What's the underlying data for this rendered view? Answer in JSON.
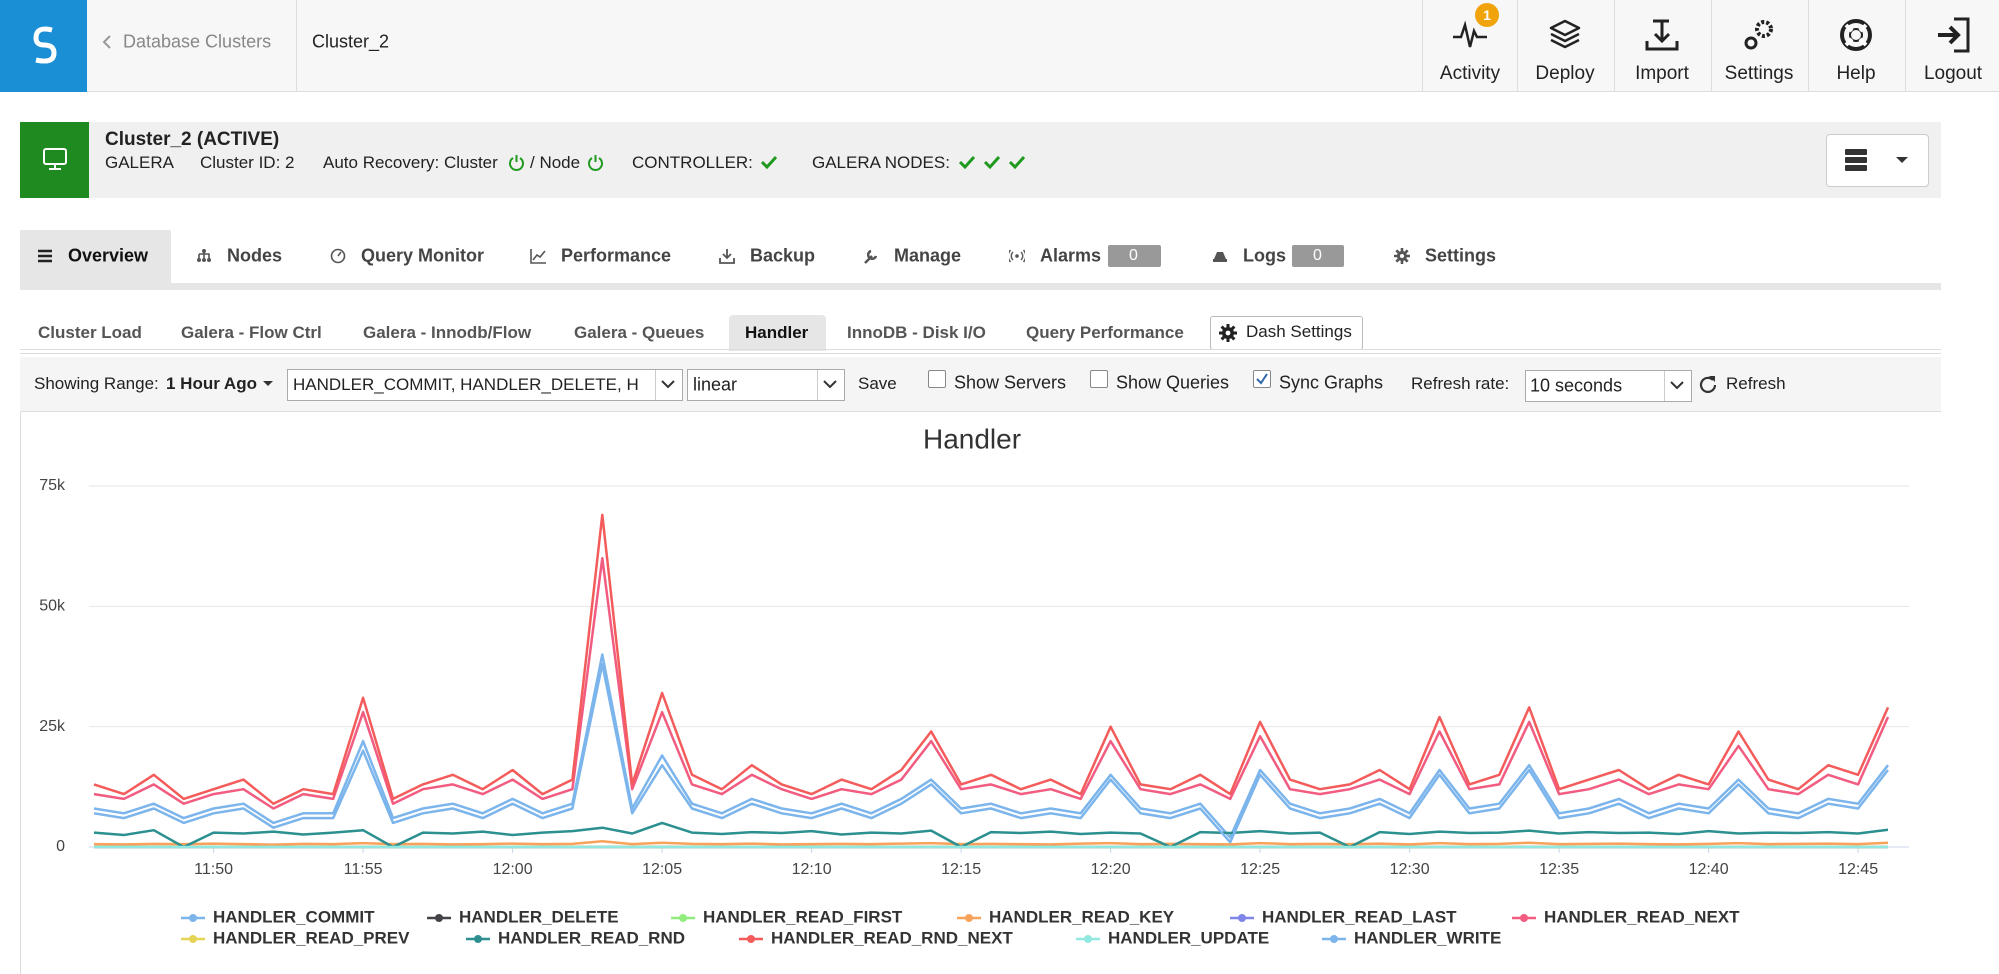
{
  "header": {
    "back_link": "Database Clusters",
    "page": "Cluster_2",
    "activity_badge": 1,
    "nav": [
      "Activity",
      "Deploy",
      "Import",
      "Settings",
      "Help",
      "Logout"
    ]
  },
  "cluster": {
    "name": "Cluster_2 (ACTIVE)",
    "type": "GALERA",
    "id": "Cluster ID: 2",
    "auto_recovery": "Auto Recovery: Cluster",
    "node": "/ Node",
    "controller": "CONTROLLER:",
    "galera_nodes": "GALERA NODES:"
  },
  "tabs": {
    "items": [
      "Overview",
      "Nodes",
      "Query Monitor",
      "Performance",
      "Backup",
      "Manage",
      "Alarms",
      "Logs",
      "Settings"
    ],
    "alarms_count": 0,
    "logs_count": 0
  },
  "subtabs": {
    "items": [
      "Cluster Load",
      "Galera - Flow Ctrl",
      "Galera - Innodb/Flow",
      "Galera - Queues",
      "Handler",
      "InnoDB - Disk I/O",
      "Query Performance"
    ],
    "dash_settings": "Dash Settings"
  },
  "toolbar": {
    "range_label": "Showing Range:",
    "range": "1 Hour Ago",
    "metrics": "HANDLER_COMMIT, HANDLER_DELETE, H",
    "scale": "linear",
    "save": "Save",
    "checkboxes": [
      {
        "label": "Show Servers",
        "checked": false
      },
      {
        "label": "Show Queries",
        "checked": false
      },
      {
        "label": "Sync Graphs",
        "checked": true
      }
    ],
    "refresh_label": "Refresh rate:",
    "refresh_rate": "10 seconds",
    "refresh": "Refresh"
  },
  "chart_data": {
    "type": "line",
    "title": "Handler",
    "x": [
      "11:46",
      "11:47",
      "11:48",
      "11:49",
      "11:50",
      "11:51",
      "11:52",
      "11:53",
      "11:54",
      "11:55",
      "11:56",
      "11:57",
      "11:58",
      "11:59",
      "12:00",
      "12:01",
      "12:02",
      "12:03",
      "12:04",
      "12:05",
      "12:06",
      "12:07",
      "12:08",
      "12:09",
      "12:10",
      "12:11",
      "12:12",
      "12:13",
      "12:14",
      "12:15",
      "12:16",
      "12:17",
      "12:18",
      "12:19",
      "12:20",
      "12:21",
      "12:22",
      "12:23",
      "12:24",
      "12:25",
      "12:26",
      "12:27",
      "12:28",
      "12:29",
      "12:30",
      "12:31",
      "12:32",
      "12:33",
      "12:34",
      "12:35",
      "12:36",
      "12:37",
      "12:38",
      "12:39",
      "12:40",
      "12:41",
      "12:42",
      "12:43",
      "12:44",
      "12:45",
      "12:46"
    ],
    "xlim": [
      "11:46",
      "12:46"
    ],
    "xticks": [
      "11:50",
      "11:55",
      "12:00",
      "12:05",
      "12:10",
      "12:15",
      "12:20",
      "12:25",
      "12:30",
      "12:35",
      "12:40",
      "12:45"
    ],
    "ylim": [
      0,
      75000
    ],
    "yticks": [
      0,
      {
        "value": 25000,
        "label": "25k"
      },
      {
        "value": 50000,
        "label": "50k"
      },
      {
        "value": 75000,
        "label": "75k"
      }
    ],
    "grid": true,
    "series": [
      {
        "name": "HANDLER_COMMIT",
        "color": "#7cb5ec",
        "values": [
          8000,
          7000,
          9000,
          6000,
          8000,
          9000,
          5000,
          7000,
          7000,
          22000,
          6000,
          8000,
          9000,
          7000,
          10000,
          7000,
          9000,
          40000,
          8000,
          19000,
          9000,
          7000,
          10000,
          8000,
          7000,
          9000,
          7000,
          10000,
          14000,
          8000,
          9000,
          7000,
          8000,
          7000,
          15000,
          8000,
          7000,
          9000,
          2000,
          16000,
          9000,
          7000,
          8000,
          10000,
          7000,
          16000,
          8000,
          9000,
          17000,
          7000,
          8000,
          10000,
          7000,
          9000,
          8000,
          14000,
          8000,
          7000,
          10000,
          9000,
          17000
        ]
      },
      {
        "name": "HANDLER_DELETE",
        "color": "#434348",
        "values": [
          0,
          0,
          0,
          0,
          0,
          0,
          0,
          0,
          0,
          0,
          0,
          0,
          0,
          0,
          0,
          0,
          0,
          0,
          0,
          0,
          0,
          0,
          0,
          0,
          0,
          0,
          0,
          0,
          0,
          0,
          0,
          0,
          0,
          0,
          0,
          0,
          0,
          0,
          0,
          0,
          0,
          0,
          0,
          0,
          0,
          0,
          0,
          0,
          0,
          0,
          0,
          0,
          0,
          0,
          0,
          0,
          0,
          0,
          0,
          0,
          0
        ]
      },
      {
        "name": "HANDLER_READ_FIRST",
        "color": "#90ed7d",
        "values": [
          0,
          0,
          0,
          0,
          0,
          0,
          0,
          0,
          0,
          0,
          0,
          0,
          0,
          0,
          0,
          0,
          0,
          0,
          0,
          0,
          0,
          0,
          0,
          0,
          0,
          0,
          0,
          0,
          0,
          0,
          0,
          0,
          0,
          0,
          0,
          0,
          0,
          0,
          0,
          0,
          0,
          0,
          0,
          0,
          0,
          0,
          0,
          0,
          0,
          0,
          0,
          0,
          0,
          0,
          0,
          0,
          0,
          0,
          0,
          0,
          0
        ]
      },
      {
        "name": "HANDLER_READ_KEY",
        "color": "#f7a35c",
        "values": [
          600,
          550,
          650,
          600,
          700,
          600,
          500,
          650,
          600,
          800,
          600,
          650,
          550,
          600,
          700,
          600,
          650,
          1200,
          600,
          900,
          650,
          600,
          700,
          550,
          600,
          650,
          600,
          700,
          800,
          600,
          650,
          600,
          550,
          700,
          800,
          600,
          650,
          600,
          550,
          800,
          600,
          650,
          600,
          700,
          550,
          800,
          600,
          650,
          900,
          600,
          650,
          700,
          600,
          550,
          650,
          800,
          600,
          650,
          700,
          600,
          900
        ]
      },
      {
        "name": "HANDLER_READ_LAST",
        "color": "#8085e9",
        "values": [
          0,
          0,
          0,
          0,
          0,
          0,
          0,
          0,
          0,
          0,
          0,
          0,
          0,
          0,
          0,
          0,
          0,
          0,
          0,
          0,
          0,
          0,
          0,
          0,
          0,
          0,
          0,
          0,
          0,
          0,
          0,
          0,
          0,
          0,
          0,
          0,
          0,
          0,
          0,
          0,
          0,
          0,
          0,
          0,
          0,
          0,
          0,
          0,
          0,
          0,
          0,
          0,
          0,
          0,
          0,
          0,
          0,
          0,
          0,
          0,
          0
        ]
      },
      {
        "name": "HANDLER_READ_NEXT",
        "color": "#f15c80",
        "values": [
          11000,
          10000,
          13000,
          9000,
          11000,
          12000,
          8000,
          11000,
          10000,
          28000,
          9000,
          12000,
          13000,
          11000,
          14000,
          10000,
          12000,
          60000,
          12000,
          28000,
          13000,
          11000,
          15000,
          12000,
          10000,
          12000,
          11000,
          14000,
          22000,
          12000,
          13000,
          11000,
          12000,
          10000,
          22000,
          12000,
          11000,
          13000,
          10000,
          23000,
          12000,
          11000,
          12000,
          14000,
          11000,
          24000,
          12000,
          13000,
          26000,
          11000,
          12000,
          14000,
          11000,
          13000,
          12000,
          21000,
          12000,
          11000,
          15000,
          13000,
          27000
        ]
      },
      {
        "name": "HANDLER_READ_PREV",
        "color": "#e4d354",
        "values": [
          0,
          0,
          0,
          0,
          0,
          0,
          0,
          0,
          0,
          0,
          0,
          0,
          0,
          0,
          0,
          0,
          0,
          0,
          0,
          0,
          0,
          0,
          0,
          0,
          0,
          0,
          0,
          0,
          0,
          0,
          0,
          0,
          0,
          0,
          0,
          0,
          0,
          0,
          0,
          0,
          0,
          0,
          0,
          0,
          0,
          0,
          0,
          0,
          0,
          0,
          0,
          0,
          0,
          0,
          0,
          0,
          0,
          0,
          0,
          0,
          0
        ]
      },
      {
        "name": "HANDLER_READ_RND",
        "color": "#2b908f",
        "values": [
          3000,
          2500,
          3500,
          0,
          3000,
          2800,
          3200,
          2600,
          3000,
          3500,
          0,
          3000,
          2800,
          3200,
          2500,
          3000,
          3300,
          4000,
          2800,
          5000,
          3000,
          2700,
          3100,
          2900,
          3300,
          2600,
          3000,
          2800,
          3400,
          0,
          3100,
          2900,
          3200,
          2700,
          3000,
          2800,
          0,
          3100,
          2900,
          3300,
          2800,
          3000,
          0,
          3100,
          2700,
          3200,
          2900,
          3000,
          3400,
          2800,
          3100,
          2900,
          3000,
          2700,
          3300,
          2800,
          3000,
          2900,
          3100,
          2800,
          3600
        ]
      },
      {
        "name": "HANDLER_READ_RND_NEXT",
        "color": "#f45b5b",
        "values": [
          13000,
          11000,
          15000,
          10000,
          12000,
          14000,
          9000,
          12000,
          11000,
          31000,
          10000,
          13000,
          15000,
          12000,
          16000,
          11000,
          14000,
          69000,
          13000,
          32000,
          15000,
          12000,
          17000,
          13000,
          11000,
          14000,
          12000,
          16000,
          24000,
          13000,
          15000,
          12000,
          14000,
          11000,
          25000,
          13000,
          12000,
          15000,
          11000,
          26000,
          14000,
          12000,
          13000,
          16000,
          12000,
          27000,
          13000,
          15000,
          29000,
          12000,
          14000,
          16000,
          12000,
          15000,
          13000,
          24000,
          14000,
          12000,
          17000,
          15000,
          29000
        ]
      },
      {
        "name": "HANDLER_UPDATE",
        "color": "#91e8e1",
        "values": [
          0,
          0,
          0,
          0,
          0,
          0,
          0,
          0,
          0,
          0,
          0,
          0,
          0,
          0,
          0,
          0,
          0,
          0,
          0,
          0,
          0,
          0,
          0,
          0,
          0,
          0,
          0,
          0,
          0,
          0,
          0,
          0,
          0,
          0,
          0,
          0,
          0,
          0,
          0,
          0,
          0,
          0,
          0,
          0,
          0,
          0,
          0,
          0,
          0,
          0,
          0,
          0,
          0,
          0,
          0,
          0,
          0,
          0,
          0,
          0,
          0
        ]
      },
      {
        "name": "HANDLER_WRITE",
        "color": "#7cb5ec",
        "values": [
          7000,
          6000,
          8000,
          5000,
          7000,
          8000,
          4000,
          6000,
          6000,
          20000,
          5000,
          7000,
          8000,
          6000,
          9000,
          6000,
          8000,
          38000,
          7000,
          17000,
          8000,
          6000,
          9000,
          7000,
          6000,
          8000,
          6000,
          9000,
          13000,
          7000,
          8000,
          6000,
          7000,
          6000,
          14000,
          7000,
          6000,
          8000,
          1000,
          15000,
          8000,
          6000,
          7000,
          9000,
          6000,
          15000,
          7000,
          8000,
          16000,
          6000,
          7000,
          9000,
          6000,
          8000,
          7000,
          13000,
          7000,
          6000,
          9000,
          8000,
          16000
        ]
      }
    ]
  }
}
